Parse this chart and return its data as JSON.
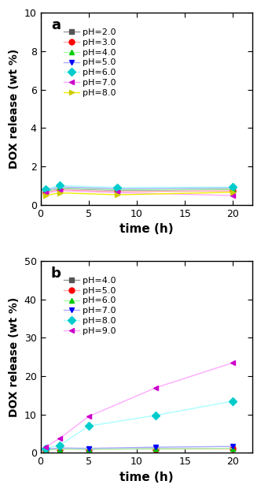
{
  "panel_a": {
    "title": "a",
    "xlabel": "time (h)",
    "ylabel": "DOX release (wt %)",
    "ylim": [
      0,
      10
    ],
    "yticks": [
      0,
      2,
      4,
      6,
      8,
      10
    ],
    "xlim": [
      0,
      22
    ],
    "xticks": [
      0,
      5,
      10,
      15,
      20
    ],
    "series": [
      {
        "label": "pH=2.0",
        "color": "#999999",
        "marker": "s",
        "markercolor": "#555555",
        "x": [
          0.5,
          2,
          8,
          20
        ],
        "y": [
          0.7,
          0.85,
          0.75,
          0.8
        ]
      },
      {
        "label": "pH=3.0",
        "color": "#ffaaaa",
        "marker": "o",
        "markercolor": "#ff0000",
        "x": [
          0.5,
          2,
          8,
          20
        ],
        "y": [
          0.65,
          0.78,
          0.68,
          0.72
        ]
      },
      {
        "label": "pH=4.0",
        "color": "#aaffaa",
        "marker": "^",
        "markercolor": "#00cc00",
        "x": [
          0.5,
          2,
          8,
          20
        ],
        "y": [
          0.7,
          0.88,
          0.78,
          0.82
        ]
      },
      {
        "label": "pH=5.0",
        "color": "#aaaaff",
        "marker": "v",
        "markercolor": "#0000ff",
        "x": [
          0.5,
          2,
          8,
          20
        ],
        "y": [
          0.75,
          0.93,
          0.83,
          0.88
        ]
      },
      {
        "label": "pH=6.0",
        "color": "#aaffff",
        "marker": "D",
        "markercolor": "#00cccc",
        "x": [
          0.5,
          2,
          8,
          20
        ],
        "y": [
          0.82,
          1.0,
          0.9,
          0.92
        ]
      },
      {
        "label": "pH=7.0",
        "color": "#ffaaff",
        "marker": "<",
        "markercolor": "#cc00cc",
        "x": [
          0.5,
          2,
          8,
          20
        ],
        "y": [
          0.6,
          0.73,
          0.63,
          0.48
        ]
      },
      {
        "label": "pH=8.0",
        "color": "#eeee00",
        "marker": ">",
        "markercolor": "#cccc00",
        "x": [
          0.5,
          2,
          8,
          20
        ],
        "y": [
          0.48,
          0.62,
          0.52,
          0.65
        ]
      }
    ]
  },
  "panel_b": {
    "title": "b",
    "xlabel": "time (h)",
    "ylabel": "DOX release (wt %)",
    "ylim": [
      0,
      50
    ],
    "yticks": [
      0,
      10,
      20,
      30,
      40,
      50
    ],
    "xlim": [
      0,
      22
    ],
    "xticks": [
      0,
      5,
      10,
      15,
      20
    ],
    "series": [
      {
        "label": "pH=4.0",
        "color": "#999999",
        "marker": "s",
        "markercolor": "#555555",
        "x": [
          0.5,
          2,
          5,
          12,
          20
        ],
        "y": [
          0.8,
          1.1,
          1.0,
          1.1,
          1.2
        ]
      },
      {
        "label": "pH=5.0",
        "color": "#ffaaaa",
        "marker": "o",
        "markercolor": "#ff0000",
        "x": [
          0.5,
          2,
          5,
          12,
          20
        ],
        "y": [
          0.8,
          1.0,
          1.0,
          1.0,
          1.1
        ]
      },
      {
        "label": "pH=6.0",
        "color": "#aaffaa",
        "marker": "^",
        "markercolor": "#00cc00",
        "x": [
          0.5,
          2,
          5,
          12,
          20
        ],
        "y": [
          0.8,
          1.0,
          1.0,
          1.1,
          1.2
        ]
      },
      {
        "label": "pH=7.0",
        "color": "#aaaaff",
        "marker": "v",
        "markercolor": "#0000ff",
        "x": [
          0.5,
          2,
          5,
          12,
          20
        ],
        "y": [
          1.0,
          1.3,
          1.2,
          1.5,
          1.7
        ]
      },
      {
        "label": "pH=8.0",
        "color": "#aaffff",
        "marker": "D",
        "markercolor": "#00cccc",
        "x": [
          0.5,
          2,
          5,
          12,
          20
        ],
        "y": [
          1.2,
          2.0,
          7.0,
          9.8,
          13.5
        ]
      },
      {
        "label": "pH=9.0",
        "color": "#ffaaff",
        "marker": "<",
        "markercolor": "#cc00cc",
        "x": [
          0.5,
          2,
          5,
          12,
          20
        ],
        "y": [
          1.5,
          3.8,
          9.5,
          17.0,
          23.5
        ]
      }
    ]
  }
}
